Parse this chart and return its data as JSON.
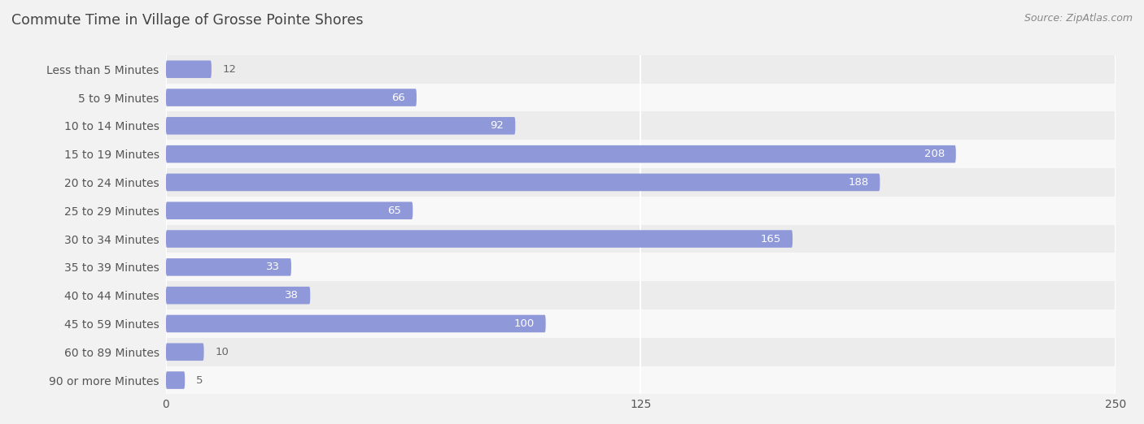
{
  "title": "Commute Time in Village of Grosse Pointe Shores",
  "source": "Source: ZipAtlas.com",
  "categories": [
    "Less than 5 Minutes",
    "5 to 9 Minutes",
    "10 to 14 Minutes",
    "15 to 19 Minutes",
    "20 to 24 Minutes",
    "25 to 29 Minutes",
    "30 to 34 Minutes",
    "35 to 39 Minutes",
    "40 to 44 Minutes",
    "45 to 59 Minutes",
    "60 to 89 Minutes",
    "90 or more Minutes"
  ],
  "values": [
    12,
    66,
    92,
    208,
    188,
    65,
    165,
    33,
    38,
    100,
    10,
    5
  ],
  "bar_color": "#8f98d8",
  "background_color": "#f2f2f2",
  "row_even_color": "#ececec",
  "row_odd_color": "#f8f8f8",
  "title_color": "#444444",
  "source_color": "#888888",
  "label_color": "#555555",
  "value_color_inside": "#ffffff",
  "value_color_outside": "#666666",
  "grid_color": "#ffffff",
  "xlim": [
    0,
    250
  ],
  "xticks": [
    0,
    125,
    250
  ],
  "title_fontsize": 12.5,
  "label_fontsize": 10,
  "value_fontsize": 9.5,
  "source_fontsize": 9,
  "inside_threshold": 25
}
